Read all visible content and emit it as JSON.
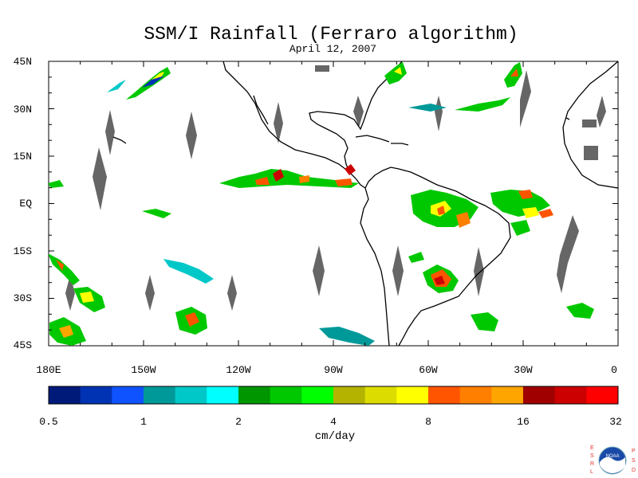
{
  "title": "SSM/I Rainfall (Ferraro algorithm)",
  "subtitle": "April 12, 2007",
  "lat_labels": [
    "45N",
    "30N",
    "15N",
    "EQ",
    "15S",
    "30S",
    "45S"
  ],
  "lon_labels": [
    "180E",
    "150W",
    "120W",
    "90W",
    "60W",
    "30W",
    "0"
  ],
  "colorbar": {
    "colors": [
      "#001a7a",
      "#0033b3",
      "#0f52ff",
      "#009999",
      "#00c8c8",
      "#00ffff",
      "#009600",
      "#00c800",
      "#00ff00",
      "#b3b300",
      "#dcdc00",
      "#ffff00",
      "#ff5500",
      "#ff7f00",
      "#ffa500",
      "#a00000",
      "#cc0000",
      "#ff0000"
    ],
    "tick_labels": [
      "0.5",
      "1",
      "2",
      "4",
      "8",
      "16",
      "32"
    ],
    "units": "cm/day"
  },
  "logo": {
    "left_text": "ESRL",
    "right_text": "PSD",
    "center_text": "NOAA"
  },
  "colors": {
    "missing_data": "#666666",
    "coastline": "#000000"
  }
}
